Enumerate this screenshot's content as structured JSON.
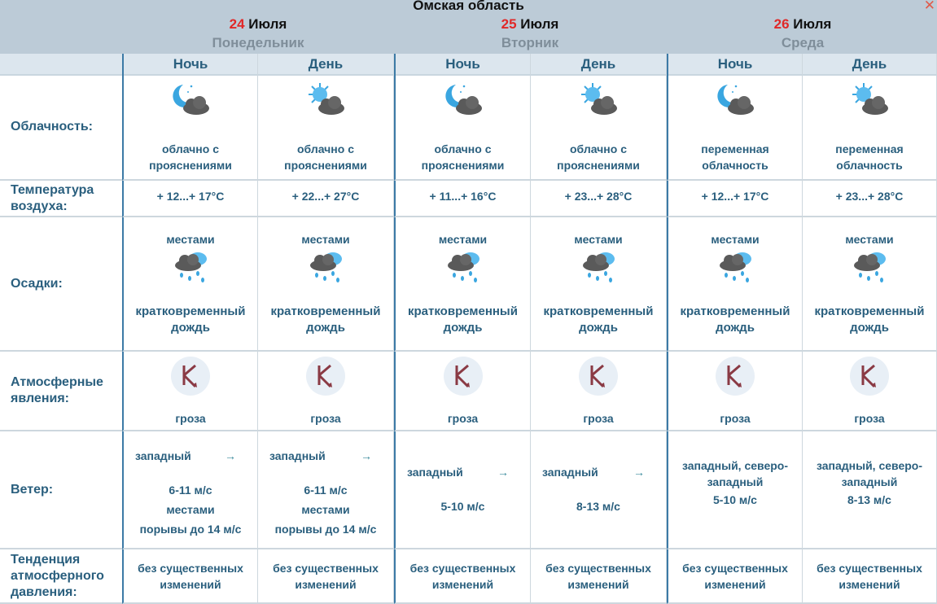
{
  "header": {
    "region": "Омская область",
    "close_icon": "close-icon",
    "days": [
      {
        "num": "24",
        "month": "Июля",
        "weekday": "Понедельник"
      },
      {
        "num": "25",
        "month": "Июля",
        "weekday": "Вторник"
      },
      {
        "num": "26",
        "month": "Июля",
        "weekday": "Среда"
      }
    ]
  },
  "row_labels": {
    "clouds": "Облачность:",
    "temp": "Температура воздуха:",
    "precip": "Осадки:",
    "phenomena": "Атмосферные явления:",
    "wind": "Ветер:",
    "pressure": "Тенденция атмосферного давления:"
  },
  "colors": {
    "accent_red": "#e02828",
    "text": "#2a5f7e",
    "header_bg": "#bccbd7"
  },
  "columns": [
    {
      "period": "Ночь",
      "cloud_icon": "moon-cloud-icon",
      "cloud_text": "облачно с прояснениями",
      "temp": "+ 12...+ 17°C",
      "precip_top": "местами",
      "precip_icon": "rain-cloud-icon",
      "precip_text": "кратковременный дождь",
      "phen_icon": "thunderstorm-icon",
      "phen_text": "гроза",
      "wind_dir": "западный",
      "wind_arrow": "→",
      "wind_speed": "6-11 м/с",
      "wind_extra1": "местами",
      "wind_extra2": "порывы до 14 м/с",
      "pressure": "без существенных изменений"
    },
    {
      "period": "День",
      "cloud_icon": "sun-cloud-icon",
      "cloud_text": "облачно с прояснениями",
      "temp": "+ 22...+ 27°C",
      "precip_top": "местами",
      "precip_icon": "rain-cloud-icon",
      "precip_text": "кратковременный дождь",
      "phen_icon": "thunderstorm-icon",
      "phen_text": "гроза",
      "wind_dir": "западный",
      "wind_arrow": "→",
      "wind_speed": "6-11 м/с",
      "wind_extra1": "местами",
      "wind_extra2": "порывы до 14 м/с",
      "pressure": "без существенных изменений"
    },
    {
      "period": "Ночь",
      "cloud_icon": "moon-cloud-icon",
      "cloud_text": "облачно с прояснениями",
      "temp": "+ 11...+ 16°C",
      "precip_top": "местами",
      "precip_icon": "rain-cloud-icon",
      "precip_text": "кратковременный дождь",
      "phen_icon": "thunderstorm-icon",
      "phen_text": "гроза",
      "wind_dir": "западный",
      "wind_arrow": "→",
      "wind_speed": "5-10 м/с",
      "pressure": "без существенных изменений"
    },
    {
      "period": "День",
      "cloud_icon": "sun-cloud-icon",
      "cloud_text": "облачно с прояснениями",
      "temp": "+ 23...+ 28°C",
      "precip_top": "местами",
      "precip_icon": "rain-cloud-icon",
      "precip_text": "кратковременный дождь",
      "phen_icon": "thunderstorm-icon",
      "phen_text": "гроза",
      "wind_dir": "западный",
      "wind_arrow": "→",
      "wind_speed": "8-13 м/с",
      "pressure": "без существенных изменений"
    },
    {
      "period": "Ночь",
      "cloud_icon": "moon-cloud-icon",
      "cloud_text": "переменная облачность",
      "temp": "+ 12...+ 17°C",
      "precip_top": "местами",
      "precip_icon": "rain-cloud-icon",
      "precip_text": "кратковременный дождь",
      "phen_icon": "thunderstorm-icon",
      "phen_text": "гроза",
      "wind_dir": "западный, северо-западный",
      "wind_speed": "5-10 м/с",
      "pressure": "без существенных изменений"
    },
    {
      "period": "День",
      "cloud_icon": "sun-cloud-icon",
      "cloud_text": "переменная облачность",
      "temp": "+ 23...+ 28°C",
      "precip_top": "местами",
      "precip_icon": "rain-cloud-icon",
      "precip_text": "кратковременный дождь",
      "phen_icon": "thunderstorm-icon",
      "phen_text": "гроза",
      "wind_dir": "западный, северо-западный",
      "wind_speed": "8-13 м/с",
      "pressure": "без существенных изменений"
    }
  ]
}
